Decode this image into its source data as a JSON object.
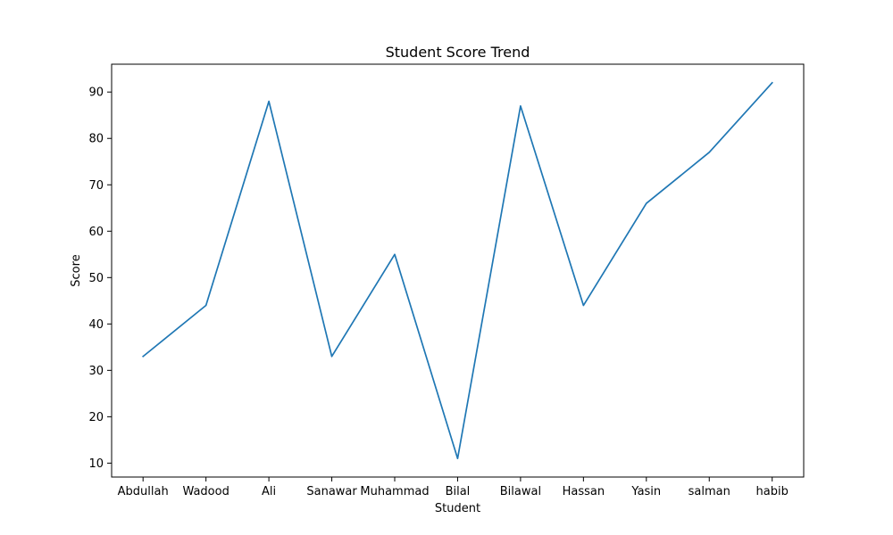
{
  "chart_data": {
    "type": "line",
    "title": "Student Score Trend",
    "xlabel": "Student",
    "ylabel": "Score",
    "categories": [
      "Abdullah",
      "Wadood",
      "Ali",
      "Sanawar",
      "Muhammad",
      "Bilal",
      "Bilawal",
      "Hassan",
      "Yasin",
      "salman",
      "habib"
    ],
    "series": [
      {
        "values": [
          33,
          44,
          88,
          33,
          55,
          11,
          87,
          44,
          66,
          77,
          92
        ],
        "color": "#1f77b4"
      }
    ],
    "ylim": [
      7,
      96
    ],
    "yticks": [
      10,
      20,
      30,
      40,
      50,
      60,
      70,
      80,
      90
    ],
    "grid": false,
    "legend": "none"
  }
}
